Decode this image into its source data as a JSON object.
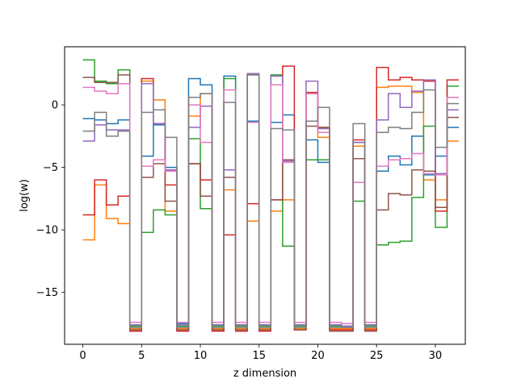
{
  "chart_data": {
    "type": "line",
    "step": "post",
    "xlabel": "z dimension",
    "ylabel": "log(w)",
    "xlim": [
      -1.55,
      32.55
    ],
    "ylim": [
      -19.15,
      4.65
    ],
    "xticks": [
      0,
      5,
      10,
      15,
      20,
      25,
      30
    ],
    "yticks": [
      0,
      -5,
      -10,
      -15
    ],
    "ytick_labels": [
      "0",
      "−5",
      "−10",
      "−15"
    ],
    "x": [
      0,
      1,
      2,
      3,
      4,
      5,
      6,
      7,
      8,
      9,
      10,
      11,
      12,
      13,
      14,
      15,
      16,
      17,
      18,
      19,
      20,
      21,
      22,
      23,
      24,
      25,
      26,
      27,
      28,
      29,
      30,
      31
    ],
    "series": [
      {
        "color": "#1f77b4",
        "values": [
          -1.1,
          -1.2,
          -1.5,
          -1.2,
          -17.6,
          -4.1,
          -1.6,
          -5.0,
          -17.5,
          2.1,
          1.6,
          -17.6,
          2.3,
          -17.6,
          -1.3,
          -17.6,
          -1.4,
          -0.8,
          -17.6,
          -2.8,
          -4.6,
          -17.6,
          -17.7,
          -3.0,
          -17.6,
          -5.3,
          -4.1,
          -4.8,
          -2.5,
          -5.6,
          -4.1,
          -1.8
        ]
      },
      {
        "color": "#ff7f0e",
        "values": [
          -10.8,
          -6.4,
          -9.1,
          -9.5,
          -17.9,
          1.9,
          0.4,
          -8.5,
          -17.9,
          -0.9,
          0.9,
          -17.9,
          -6.8,
          -17.9,
          -9.3,
          -17.9,
          -8.5,
          -7.6,
          -17.9,
          0.9,
          -2.6,
          -17.9,
          -17.9,
          -3.3,
          -17.9,
          1.4,
          1.5,
          1.5,
          1.0,
          -6.0,
          -7.6,
          -2.9
        ]
      },
      {
        "color": "#2ca02c",
        "values": [
          3.6,
          1.9,
          1.7,
          2.8,
          -17.7,
          -10.2,
          -8.4,
          -8.8,
          -17.7,
          -2.7,
          -8.3,
          -17.7,
          2.1,
          -17.7,
          2.5,
          -17.7,
          2.4,
          -11.3,
          -17.7,
          -4.4,
          -4.4,
          -17.7,
          -17.8,
          -7.7,
          -17.7,
          -11.2,
          -11.0,
          -10.9,
          -7.4,
          -1.7,
          -9.8,
          1.5
        ]
      },
      {
        "color": "#d62728",
        "values": [
          -8.8,
          -6.0,
          -8.0,
          -7.3,
          -18.1,
          2.1,
          -1.5,
          -6.4,
          -18.1,
          -4.7,
          -6.0,
          -18.1,
          -10.4,
          -18.1,
          -7.9,
          -18.1,
          -7.6,
          3.1,
          -18.0,
          1.0,
          -1.8,
          -18.0,
          -18.0,
          -2.8,
          -18.0,
          3.0,
          2.0,
          2.2,
          2.0,
          1.9,
          -8.5,
          2.0
        ]
      },
      {
        "color": "#9467bd",
        "values": [
          -2.9,
          -1.6,
          -2.0,
          -2.0,
          -17.6,
          1.7,
          -1.5,
          -5.2,
          -17.6,
          -1.8,
          -0.1,
          -17.6,
          -5.2,
          -17.6,
          2.5,
          -17.6,
          2.3,
          -4.5,
          -17.6,
          1.9,
          -1.9,
          -17.6,
          -17.7,
          -3.0,
          -17.6,
          -1.2,
          0.9,
          -0.2,
          1.1,
          2.0,
          -5.5,
          -0.4
        ]
      },
      {
        "color": "#8c564b",
        "values": [
          2.2,
          1.8,
          1.8,
          2.4,
          -18.0,
          -5.8,
          -4.7,
          -7.7,
          -18.0,
          -4.7,
          -7.3,
          -18.0,
          -5.8,
          -18.0,
          2.4,
          -18.0,
          -7.6,
          -4.4,
          -18.0,
          -1.7,
          -1.8,
          -18.1,
          -18.1,
          -4.3,
          -18.1,
          -8.4,
          -7.1,
          -7.2,
          -5.2,
          -5.3,
          -8.2,
          -1.0
        ]
      },
      {
        "color": "#e377c2",
        "values": [
          1.4,
          1.1,
          0.9,
          1.7,
          -17.4,
          -4.9,
          -4.4,
          -5.3,
          -17.4,
          0.0,
          -3.0,
          -17.4,
          1.2,
          -17.4,
          -1.4,
          -17.4,
          1.6,
          -4.6,
          -17.4,
          0.9,
          -2.2,
          -17.4,
          -17.5,
          -6.2,
          -17.4,
          -4.9,
          -4.4,
          -4.3,
          -3.9,
          -5.5,
          -5.6,
          0.6
        ]
      },
      {
        "color": "#7f7f7f",
        "values": [
          -2.1,
          -0.6,
          -2.5,
          -2.1,
          -17.8,
          -0.6,
          -0.4,
          -2.6,
          -17.8,
          0.6,
          0.9,
          -17.8,
          0.2,
          -17.8,
          2.4,
          -17.8,
          -1.9,
          -2.0,
          -17.8,
          -1.3,
          -0.2,
          -17.8,
          -17.8,
          -1.5,
          -17.8,
          -2.2,
          -1.8,
          -1.9,
          -0.6,
          1.2,
          -3.4,
          0.1
        ]
      }
    ]
  }
}
